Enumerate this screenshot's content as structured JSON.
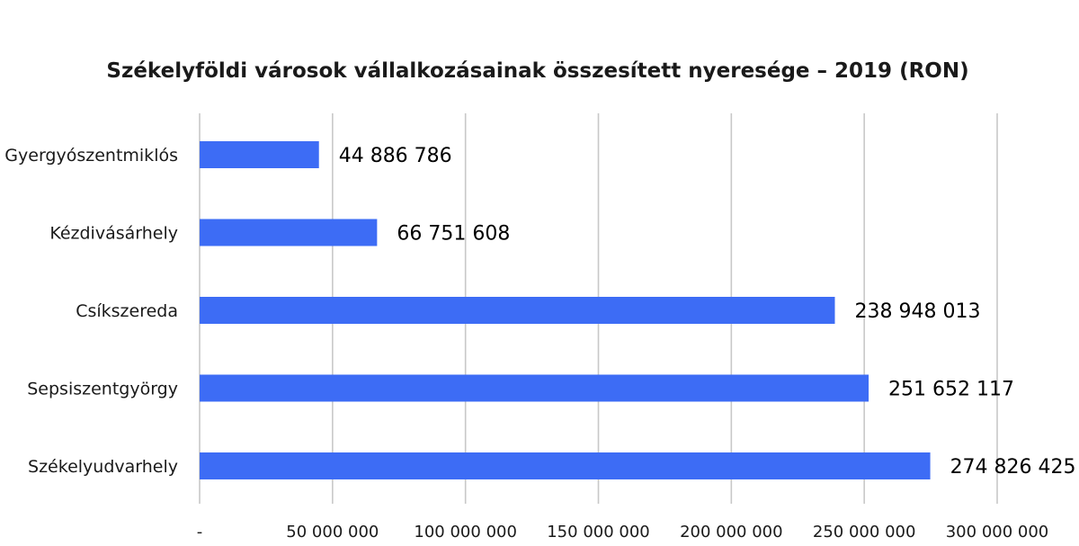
{
  "chart_data": {
    "type": "bar",
    "orientation": "horizontal",
    "title": "Székelyföldi városok vállalkozásainak összesített nyeresége – 2019 (RON)",
    "xlabel": "",
    "ylabel": "",
    "categories": [
      "Gyergyószentmiklós",
      "Kézdivásárhely",
      "Csíkszereda",
      "Sepsiszentgyörgy",
      "Székelyudvarhely"
    ],
    "values": [
      44886786,
      66751608,
      238948013,
      251652117,
      274826425
    ],
    "value_labels": [
      "44 886 786",
      "66 751 608",
      "238 948 013",
      "251 652 117",
      "274 826 425"
    ],
    "xlim": [
      0,
      300000000
    ],
    "ticks": [
      0,
      50000000,
      100000000,
      150000000,
      200000000,
      250000000,
      300000000
    ],
    "tick_labels": [
      "-",
      "50 000 000",
      "100 000 000",
      "150 000 000",
      "200 000 000",
      "250 000 000",
      "300 000 000"
    ],
    "grid": true,
    "bar_color": "#3d6cf5",
    "grid_color": "#c8c8c8"
  }
}
